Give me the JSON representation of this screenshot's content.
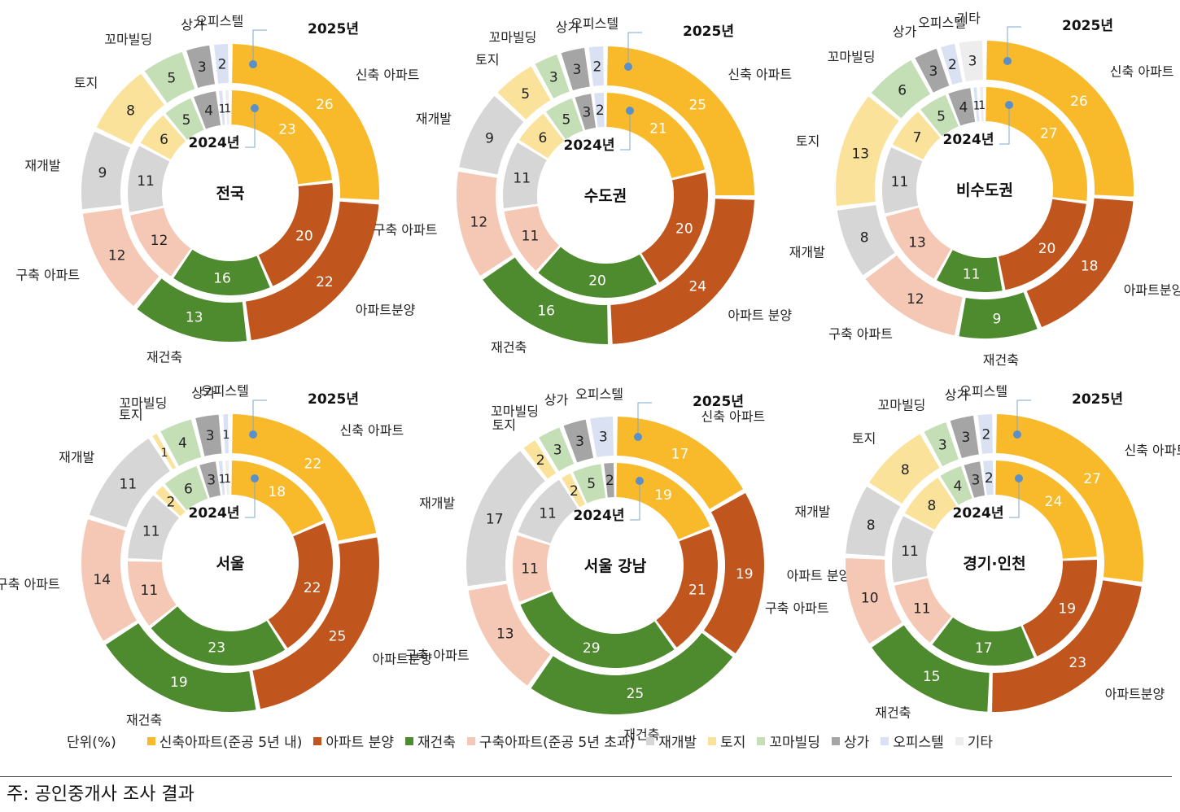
{
  "legend": {
    "unit": "단위(%)",
    "items": [
      {
        "label": "신축아파트(준공 5년 내)",
        "color": "#F8BA2A"
      },
      {
        "label": "아파트 분양",
        "color": "#C0561D"
      },
      {
        "label": "재건축",
        "color": "#4E8A2E"
      },
      {
        "label": "구축아파트(준공 5년 초과)",
        "color": "#F5C8B5"
      },
      {
        "label": "재개발",
        "color": "#D6D6D6"
      },
      {
        "label": "토지",
        "color": "#FBE29B"
      },
      {
        "label": "꼬마빌딩",
        "color": "#C4DFB6"
      },
      {
        "label": "상가",
        "color": "#A6A5A6"
      },
      {
        "label": "오피스텔",
        "color": "#D9E1F2"
      },
      {
        "label": "기타",
        "color": "#EDEDED"
      }
    ]
  },
  "note": "주: 공인중개사 조사 결과",
  "chart_data": [
    {
      "type": "donut",
      "title": "전국",
      "outer_label": "2025년",
      "inner_label": "2024년",
      "categories": [
        "신축 아파트",
        "아파트분양",
        "재건축",
        "구축 아파트",
        "재개발",
        "토지",
        "꼬마빌딩",
        "상가",
        "오피스텔",
        "기타"
      ],
      "series": [
        {
          "name": "2025년",
          "values": [
            26,
            22,
            13,
            12,
            9,
            8,
            5,
            3,
            2,
            0
          ]
        },
        {
          "name": "2024년",
          "values": [
            23,
            20,
            16,
            12,
            11,
            6,
            5,
            4,
            1,
            1
          ]
        }
      ]
    },
    {
      "type": "donut",
      "title": "수도권",
      "outer_label": "2025년",
      "inner_label": "2024년",
      "categories": [
        "신축 아파트",
        "아파트 분양",
        "재건축",
        "구축 아파트",
        "재개발",
        "토지",
        "꼬마빌딩",
        "상가",
        "오피스텔",
        "기타"
      ],
      "series": [
        {
          "name": "2025년",
          "values": [
            25,
            24,
            16,
            12,
            9,
            5,
            3,
            3,
            2,
            0
          ]
        },
        {
          "name": "2024년",
          "values": [
            21,
            20,
            20,
            11,
            11,
            6,
            5,
            3,
            2,
            0
          ]
        }
      ]
    },
    {
      "type": "donut",
      "title": "비수도권",
      "outer_label": "2025년",
      "inner_label": "2024년",
      "categories": [
        "신축 아파트",
        "아파트분양",
        "재건축",
        "구축 아파트",
        "재개발",
        "토지",
        "꼬마빌딩",
        "상가",
        "오피스텔",
        "기타"
      ],
      "series": [
        {
          "name": "2025년",
          "values": [
            26,
            18,
            9,
            12,
            8,
            13,
            6,
            3,
            2,
            3
          ]
        },
        {
          "name": "2024년",
          "values": [
            27,
            20,
            11,
            13,
            11,
            7,
            5,
            4,
            1,
            1
          ]
        }
      ]
    },
    {
      "type": "donut",
      "title": "서울",
      "outer_label": "2025년",
      "inner_label": "2024년",
      "categories": [
        "신축 아파트",
        "아파트분양",
        "재건축",
        "구축 아파트",
        "재개발",
        "토지",
        "꼬마빌딩",
        "상가",
        "오피스텔",
        "기타"
      ],
      "series": [
        {
          "name": "2025년",
          "values": [
            22,
            25,
            19,
            14,
            11,
            1,
            4,
            3,
            1,
            0
          ]
        },
        {
          "name": "2024년",
          "values": [
            18,
            22,
            23,
            11,
            11,
            2,
            6,
            3,
            1,
            1
          ]
        }
      ]
    },
    {
      "type": "donut",
      "title": "서울 강남",
      "outer_label": "2025년",
      "inner_label": "2024년",
      "categories": [
        "신축 아파트",
        "아파트 분양",
        "재건축",
        "구축 아파트",
        "재개발",
        "토지",
        "꼬마빌딩",
        "상가",
        "오피스텔",
        "기타"
      ],
      "series": [
        {
          "name": "2025년",
          "values": [
            17,
            19,
            25,
            13,
            17,
            2,
            3,
            3,
            3,
            0
          ]
        },
        {
          "name": "2024년",
          "values": [
            19,
            21,
            29,
            11,
            11,
            2,
            5,
            2,
            0,
            0
          ]
        }
      ]
    },
    {
      "type": "donut",
      "title": "경기·인천",
      "outer_label": "2025년",
      "inner_label": "2024년",
      "categories": [
        "신축 아파트",
        "아파트분양",
        "재건축",
        "구축 아파트",
        "재개발",
        "토지",
        "꼬마빌딩",
        "상가",
        "오피스텔",
        "기타"
      ],
      "series": [
        {
          "name": "2025년",
          "values": [
            27,
            23,
            15,
            10,
            8,
            8,
            3,
            3,
            2,
            0
          ]
        },
        {
          "name": "2024년",
          "values": [
            24,
            19,
            17,
            11,
            11,
            8,
            4,
            3,
            2,
            0
          ]
        }
      ]
    }
  ]
}
